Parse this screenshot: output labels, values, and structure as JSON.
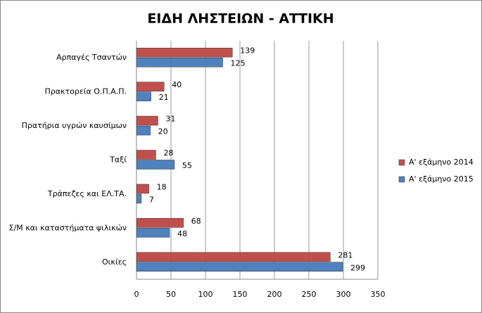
{
  "chart_data": {
    "type": "hbar",
    "title": "ΕΙΔΗ ΛΗΣΤΕΙΩΝ - ΑΤΤΙΚΗ",
    "categories": [
      "Αρπαγές Τσαντών",
      "Πρακτορεία Ο.Π.Α.Π.",
      "Πρατήρια υγρών καυσίμων",
      "Ταξί",
      "Τράπεζες και ΕΛ.ΤΑ.",
      "Σ/Μ και καταστήματα ψιλικών",
      "Οικίες"
    ],
    "series": [
      {
        "name": "Α' εξάμηνο 2014",
        "color": "#c0504d",
        "values": [
          139,
          40,
          31,
          28,
          18,
          68,
          281
        ]
      },
      {
        "name": "Α' εξάμηνο 2015",
        "color": "#4f81bd",
        "values": [
          125,
          21,
          20,
          55,
          7,
          48,
          299
        ]
      }
    ],
    "xlim": [
      0,
      350
    ],
    "xticks": [
      0,
      50,
      100,
      150,
      200,
      250,
      300,
      350
    ],
    "grid": true,
    "legend": "right"
  }
}
